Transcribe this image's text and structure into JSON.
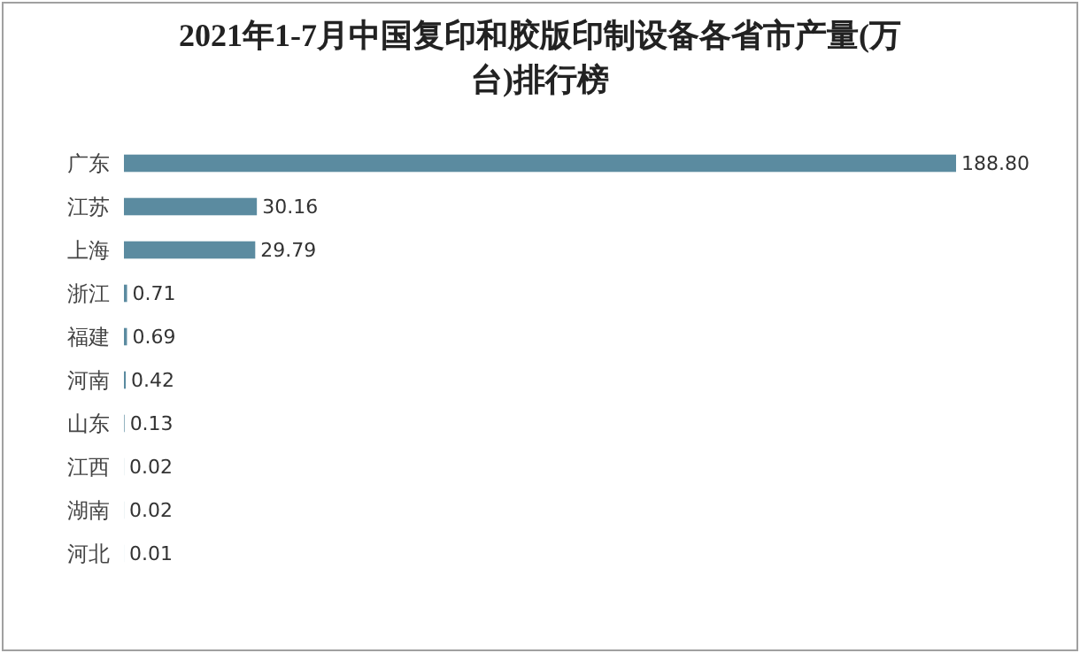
{
  "chart_data": {
    "type": "bar",
    "orientation": "horizontal",
    "title": "2021年1-7月中国复印和胶版印制设备各省市产量(万台)排行榜",
    "categories": [
      "广东",
      "江苏",
      "上海",
      "浙江",
      "福建",
      "河南",
      "山东",
      "江西",
      "湖南",
      "河北"
    ],
    "values": [
      188.8,
      30.16,
      29.79,
      0.71,
      0.69,
      0.42,
      0.13,
      0.02,
      0.02,
      0.01
    ],
    "color": "#5b8ba0",
    "data_labels": true,
    "value_labels": [
      "188.80",
      "30.16",
      "29.79",
      "0.71",
      "0.69",
      "0.42",
      "0.13",
      "0.02",
      "0.02",
      "0.01"
    ]
  }
}
